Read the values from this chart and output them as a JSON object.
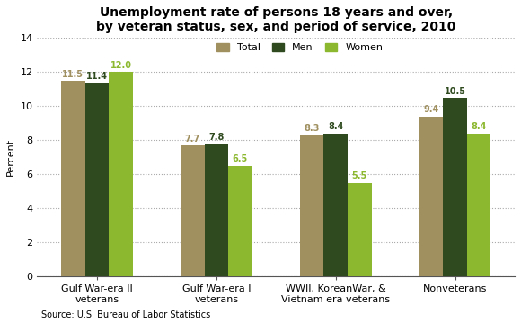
{
  "title": "Unemployment rate of persons 18 years and over,\nby veteran status, sex, and period of service, 2010",
  "categories": [
    "Gulf War-era II\nveterans",
    "Gulf War-era I\nveterans",
    "WWII, KoreanWar, &\nVietnam era veterans",
    "Nonveterans"
  ],
  "series": {
    "Total": [
      11.5,
      7.7,
      8.3,
      9.4
    ],
    "Men": [
      11.4,
      7.8,
      8.4,
      10.5
    ],
    "Women": [
      12.0,
      6.5,
      5.5,
      8.4
    ]
  },
  "colors": {
    "Total": "#a09060",
    "Men": "#2e4a1e",
    "Women": "#8cb830"
  },
  "ylabel": "Percent",
  "ylim": [
    0,
    14
  ],
  "yticks": [
    0,
    2,
    4,
    6,
    8,
    10,
    12,
    14
  ],
  "legend_labels": [
    "Total",
    "Men",
    "Women"
  ],
  "source": "Source: U.S. Bureau of Labor Statistics",
  "title_fontsize": 10,
  "label_fontsize": 8,
  "tick_fontsize": 8,
  "bar_value_fontsize": 7,
  "background_color": "#ffffff"
}
